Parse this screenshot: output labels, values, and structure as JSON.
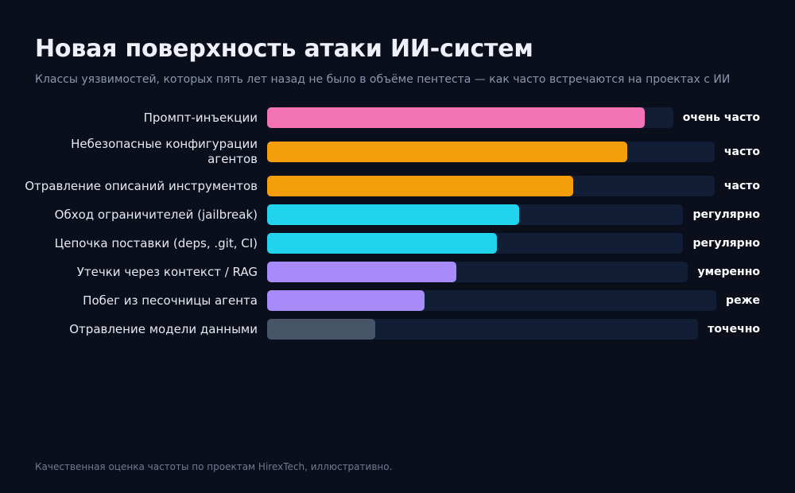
{
  "header": {
    "title": "Новая поверхность атаки ИИ-систем",
    "subtitle": "Классы уязвимостей, которых пять лет назад не было в объёме пентеста — как часто встречаются на проектах с ИИ"
  },
  "footer": {
    "note": "Качественная оценка частоты по проектам HirexTech, иллюстративно."
  },
  "chart_data": {
    "type": "bar",
    "orientation": "horizontal",
    "title": "Новая поверхность атаки ИИ-систем",
    "subtitle": "Классы уязвимостей, которых пять лет назад не было в объёме пентеста — как часто встречаются на проектах с ИИ",
    "xlim": [
      0,
      1
    ],
    "grid": false,
    "categories": [
      [
        "Промпт-инъекции"
      ],
      [
        "Небезопасные конфигурации",
        "агентов"
      ],
      [
        "Отравление описаний инструментов"
      ],
      [
        "Обход ограничителей (jailbreak)"
      ],
      [
        "Цепочка поставки (deps, .git, CI)"
      ],
      [
        "Утечки через контекст / RAG"
      ],
      [
        "Побег из песочницы агента"
      ],
      [
        "Отравление модели данными"
      ]
    ],
    "values": [
      0.84,
      0.8,
      0.68,
      0.56,
      0.51,
      0.42,
      0.35,
      0.24
    ],
    "frequency_labels": [
      "очень часто",
      "часто",
      "часто",
      "регулярно",
      "регулярно",
      "умеренно",
      "реже",
      "точечно"
    ],
    "colors": [
      "#f472b6",
      "#f59e0b",
      "#f59e0b",
      "#22d3ee",
      "#22d3ee",
      "#a78bfa",
      "#a78bfa",
      "#475569"
    ],
    "track_color": "#121d36"
  }
}
